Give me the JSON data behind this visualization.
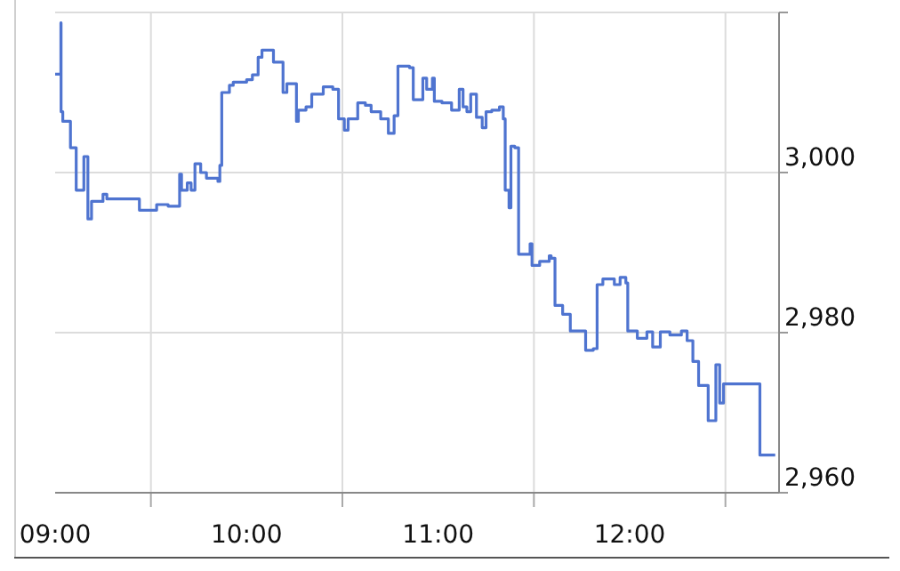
{
  "chart_data": {
    "type": "step",
    "x": [
      9.0,
      9.03,
      9.031,
      9.04,
      9.07,
      9.08,
      9.11,
      9.14,
      9.15,
      9.17,
      9.171,
      9.19,
      9.23,
      9.25,
      9.27,
      9.42,
      9.44,
      9.49,
      9.53,
      9.57,
      9.59,
      9.64,
      9.65,
      9.66,
      9.69,
      9.71,
      9.73,
      9.76,
      9.79,
      9.85,
      9.86,
      9.87,
      9.91,
      9.93,
      10.0,
      10.03,
      10.06,
      10.08,
      10.12,
      10.14,
      10.17,
      10.19,
      10.21,
      10.24,
      10.26,
      10.27,
      10.31,
      10.34,
      10.4,
      10.45,
      10.48,
      10.51,
      10.53,
      10.58,
      10.62,
      10.65,
      10.7,
      10.74,
      10.77,
      10.79,
      10.85,
      10.87,
      10.9,
      10.92,
      10.94,
      10.97,
      10.98,
      11.02,
      11.07,
      11.11,
      11.13,
      11.15,
      11.17,
      11.2,
      11.23,
      11.25,
      11.28,
      11.32,
      11.34,
      11.35,
      11.37,
      11.38,
      11.4,
      11.42,
      11.47,
      11.48,
      11.49,
      11.53,
      11.58,
      11.59,
      11.61,
      11.65,
      11.69,
      11.74,
      11.77,
      11.81,
      11.83,
      11.86,
      11.92,
      11.95,
      11.98,
      11.99,
      12.04,
      12.09,
      12.12,
      12.16,
      12.21,
      12.27,
      12.3,
      12.33,
      12.36,
      12.41,
      12.45,
      12.47,
      12.49,
      12.67,
      12.68,
      12.76
    ],
    "series": [
      {
        "color": "#4f74d0",
        "values": [
          3012.3,
          3018.7,
          3007.6,
          3006.4,
          3006.4,
          3003.1,
          2997.8,
          2997.8,
          3002,
          3002,
          2994.2,
          2996.4,
          2996.4,
          2997.3,
          2996.7,
          2996.7,
          2995.3,
          2995.3,
          2996,
          2996,
          2995.8,
          2995.8,
          2999.8,
          2997.8,
          2998.7,
          2997.8,
          3001.1,
          3000,
          2999.3,
          2998.9,
          3000.9,
          3010,
          3010.9,
          3011.3,
          3011.6,
          3012.2,
          3014.4,
          3015.3,
          3015.3,
          3013.8,
          3013.8,
          3010,
          3011.1,
          3011.1,
          3006.4,
          3007.8,
          3008.2,
          3009.8,
          3010.7,
          3010.4,
          3006.7,
          3005.3,
          3006.7,
          3008.7,
          3008.4,
          3007.6,
          3006.7,
          3004.9,
          3007.1,
          3013.3,
          3013.1,
          3009.1,
          3009.1,
          3011.8,
          3010.4,
          3011.8,
          3008.9,
          3008.7,
          3007.8,
          3010.4,
          3008.2,
          3007.6,
          3009.8,
          3006.9,
          3005.6,
          3007.6,
          3007.8,
          3008.2,
          3006.7,
          2997.8,
          2995.6,
          3003.3,
          3003.1,
          2989.8,
          2989.8,
          2991.1,
          2988.4,
          2988.9,
          2989.6,
          2989.3,
          2983.4,
          2982.3,
          2980.2,
          2980.2,
          2977.8,
          2978,
          2986,
          2986.7,
          2986,
          2986.9,
          2986.2,
          2980.2,
          2979.3,
          2980.1,
          2978.2,
          2980.1,
          2979.7,
          2980.2,
          2979,
          2976.4,
          2973.4,
          2969,
          2976,
          2971.2,
          2973.6,
          2973.6,
          2964.7,
          2964.7
        ]
      }
    ],
    "xlim": [
      9,
      12.78
    ],
    "xticks": [
      {
        "value": 9,
        "label": "09:00"
      },
      {
        "value": 9.5,
        "label": null
      },
      {
        "value": 10,
        "label": "10:00"
      },
      {
        "value": 10.5,
        "label": null
      },
      {
        "value": 11,
        "label": "11:00"
      },
      {
        "value": 11.5,
        "label": null
      },
      {
        "value": 12,
        "label": "12:00"
      },
      {
        "value": 12.5,
        "label": null
      }
    ],
    "ylim": [
      2960,
      3020
    ],
    "yticks": [
      {
        "value": 2960,
        "label": "2,960"
      },
      {
        "value": 2980,
        "label": "2,980"
      },
      {
        "value": 3000,
        "label": "3,000"
      },
      {
        "value": 3020,
        "label": null
      }
    ],
    "grid": true,
    "line_style": "solid",
    "marker": "none"
  }
}
